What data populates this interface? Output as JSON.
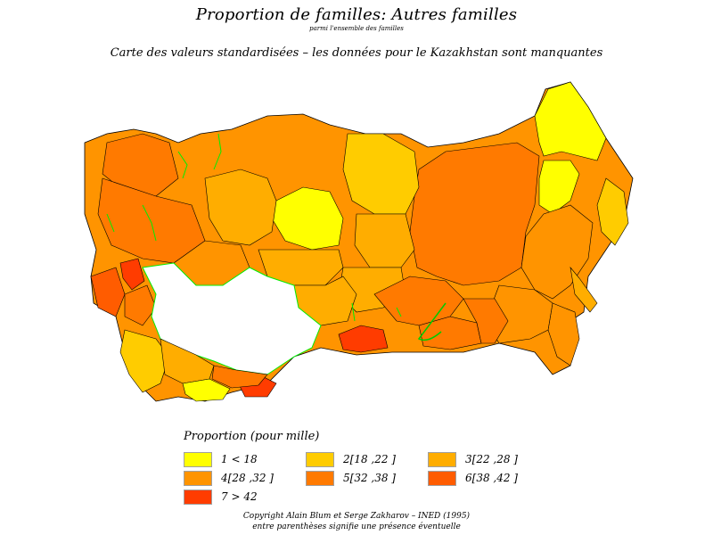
{
  "title": "Proportion de familles: Autres familles",
  "subtitle": "parmi l'ensemble des familles",
  "note": "Carte des valeurs standardisées  –  les données pour le Kazakhstan sont manquantes",
  "legend": {
    "title": "Proportion (pour mille)",
    "items": [
      {
        "label": "1  <  18",
        "color": "#ffff00"
      },
      {
        "label": "2[18 ,22 ]",
        "color": "#ffcc00"
      },
      {
        "label": "3[22 ,28 ]",
        "color": "#ffad00"
      },
      {
        "label": "4[28 ,32 ]",
        "color": "#ff9400"
      },
      {
        "label": "5[32 ,38 ]",
        "color": "#ff7a00"
      },
      {
        "label": "6[38 ,42 ]",
        "color": "#ff5c00"
      },
      {
        "label": "7  >  42",
        "color": "#ff3c00"
      }
    ]
  },
  "colors": {
    "missing_fill": "#ffffff",
    "kazakhstan_border": "#00ee00",
    "region_border": "#000000"
  },
  "footer": {
    "copyright": "Copyright Alain Blum et Serge Zakharov  –  INED (1995)",
    "note": "entre parenthèses signifie une présence éventuelle"
  }
}
